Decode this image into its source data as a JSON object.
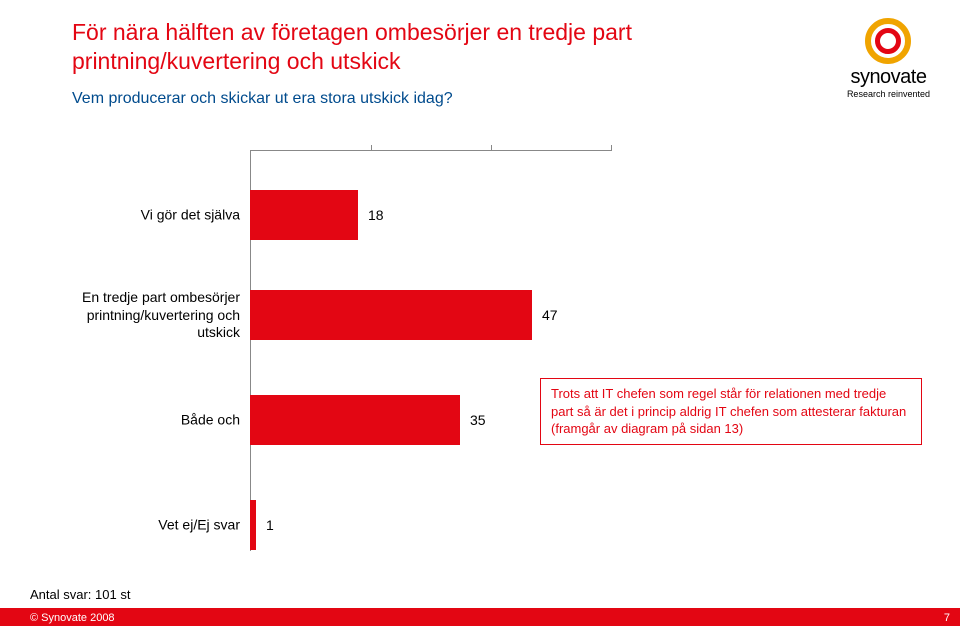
{
  "title": {
    "line1": "För nära hälften av företagen ombesörjer en tredje part",
    "line2": "printning/kuvertering och utskick",
    "color": "#e30613",
    "fontsize": 23
  },
  "subtitle": {
    "text": "Vem producerar och skickar ut era stora utskick idag?",
    "color": "#004b8d",
    "fontsize": 16
  },
  "logo": {
    "name": "synovate",
    "tagline": "Research reinvented",
    "outer_ring_color": "#f0a400",
    "inner_ring_color": "#e30613"
  },
  "chart": {
    "type": "bar-horizontal",
    "xlim": [
      0,
      60
    ],
    "xtick_step": 20,
    "bar_color": "#e30613",
    "label_fontsize": 14,
    "value_fontsize": 14,
    "grid_color": "#888888",
    "background_color": "#ffffff",
    "rows": [
      {
        "label": "Vi gör det själva",
        "value": 18
      },
      {
        "label": "En tredje part ombesörjer printning/kuvertering och utskick",
        "value": 47
      },
      {
        "label": "Både och",
        "value": 35
      },
      {
        "label": "Vet ej/Ej svar",
        "value": 1
      }
    ]
  },
  "note": {
    "text": "Trots att  IT chefen som regel står för relationen med tredje part så är det i princip aldrig IT chefen som attesterar fakturan (framgår av diagram på sidan 13)",
    "border_color": "#e30613",
    "bg_color": "#ffffff",
    "text_color": "#e30613",
    "fontsize": 13
  },
  "footer": {
    "sample": "Antal svar: 101 st",
    "copyright": "© Synovate 2008",
    "page": "7",
    "bar_color": "#e30613"
  }
}
